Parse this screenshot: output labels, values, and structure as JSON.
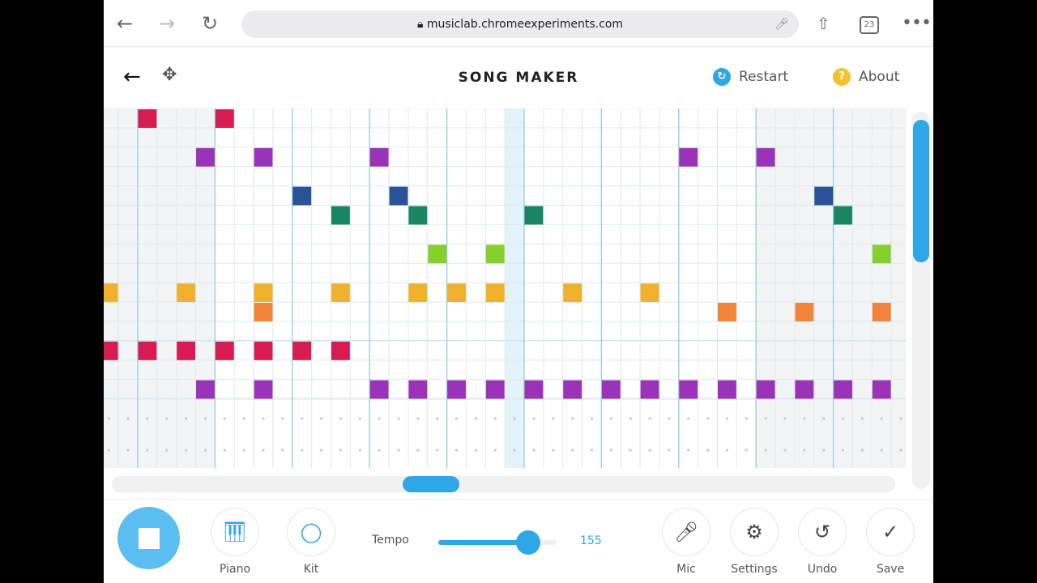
{
  "browser": {
    "url": "musiclab.chromeexperiments.com",
    "tab_count": "23"
  },
  "header": {
    "title": "SONG MAKER",
    "restart": "Restart",
    "about": "About",
    "about_icon": "?"
  },
  "grid": {
    "columns": 42,
    "rows": 15,
    "beats_per_bar": 4,
    "playhead_column": 21,
    "shaded_columns": [
      0,
      1,
      2,
      3,
      4,
      5,
      34,
      35,
      36,
      37,
      38,
      39,
      40,
      41
    ],
    "notes": [
      {
        "col": 2,
        "row": 0,
        "color": "#d81b50"
      },
      {
        "col": 6,
        "row": 0,
        "color": "#d81b50"
      },
      {
        "col": 5,
        "row": 2,
        "color": "#9a33b8"
      },
      {
        "col": 8,
        "row": 2,
        "color": "#9a33b8"
      },
      {
        "col": 14,
        "row": 2,
        "color": "#9a33b8"
      },
      {
        "col": 30,
        "row": 2,
        "color": "#9a33b8"
      },
      {
        "col": 34,
        "row": 2,
        "color": "#9a33b8"
      },
      {
        "col": 10,
        "row": 4,
        "color": "#2a5298"
      },
      {
        "col": 15,
        "row": 4,
        "color": "#2a5298"
      },
      {
        "col": 37,
        "row": 4,
        "color": "#2a5298"
      },
      {
        "col": 12,
        "row": 5,
        "color": "#1b8563"
      },
      {
        "col": 16,
        "row": 5,
        "color": "#1b8563"
      },
      {
        "col": 22,
        "row": 5,
        "color": "#1b8563"
      },
      {
        "col": 38,
        "row": 5,
        "color": "#1b8563"
      },
      {
        "col": 17,
        "row": 7,
        "color": "#86d02e"
      },
      {
        "col": 20,
        "row": 7,
        "color": "#86d02e"
      },
      {
        "col": 40,
        "row": 7,
        "color": "#86d02e"
      },
      {
        "col": 0,
        "row": 9,
        "color": "#f0b12c"
      },
      {
        "col": 4,
        "row": 9,
        "color": "#f0b12c"
      },
      {
        "col": 8,
        "row": 9,
        "color": "#f0b12c"
      },
      {
        "col": 12,
        "row": 9,
        "color": "#f0b12c"
      },
      {
        "col": 16,
        "row": 9,
        "color": "#f0b12c"
      },
      {
        "col": 18,
        "row": 9,
        "color": "#f0b12c"
      },
      {
        "col": 20,
        "row": 9,
        "color": "#f0b12c"
      },
      {
        "col": 24,
        "row": 9,
        "color": "#f0b12c"
      },
      {
        "col": 28,
        "row": 9,
        "color": "#f0b12c"
      },
      {
        "col": 8,
        "row": 10,
        "color": "#f0843a"
      },
      {
        "col": 32,
        "row": 10,
        "color": "#f0843a"
      },
      {
        "col": 36,
        "row": 10,
        "color": "#f0843a"
      },
      {
        "col": 40,
        "row": 10,
        "color": "#f0843a"
      },
      {
        "col": 0,
        "row": 12,
        "color": "#d81b50"
      },
      {
        "col": 2,
        "row": 12,
        "color": "#d81b50"
      },
      {
        "col": 4,
        "row": 12,
        "color": "#d81b50"
      },
      {
        "col": 6,
        "row": 12,
        "color": "#d81b50"
      },
      {
        "col": 8,
        "row": 12,
        "color": "#d81b50"
      },
      {
        "col": 10,
        "row": 12,
        "color": "#d81b50"
      },
      {
        "col": 12,
        "row": 12,
        "color": "#d81b50"
      },
      {
        "col": 5,
        "row": 14,
        "color": "#9a33b8"
      },
      {
        "col": 8,
        "row": 14,
        "color": "#9a33b8"
      },
      {
        "col": 14,
        "row": 14,
        "color": "#9a33b8"
      },
      {
        "col": 16,
        "row": 14,
        "color": "#9a33b8"
      },
      {
        "col": 18,
        "row": 14,
        "color": "#9a33b8"
      },
      {
        "col": 20,
        "row": 14,
        "color": "#9a33b8"
      },
      {
        "col": 22,
        "row": 14,
        "color": "#9a33b8"
      },
      {
        "col": 24,
        "row": 14,
        "color": "#9a33b8"
      },
      {
        "col": 26,
        "row": 14,
        "color": "#9a33b8"
      },
      {
        "col": 28,
        "row": 14,
        "color": "#9a33b8"
      },
      {
        "col": 30,
        "row": 14,
        "color": "#9a33b8"
      },
      {
        "col": 32,
        "row": 14,
        "color": "#9a33b8"
      },
      {
        "col": 34,
        "row": 14,
        "color": "#9a33b8"
      },
      {
        "col": 36,
        "row": 14,
        "color": "#9a33b8"
      },
      {
        "col": 38,
        "row": 14,
        "color": "#9a33b8"
      },
      {
        "col": 40,
        "row": 14,
        "color": "#9a33b8"
      }
    ]
  },
  "toolbar": {
    "piano": "Piano",
    "kit": "Kit",
    "tempo_label": "Tempo",
    "tempo_value": "155",
    "tempo_fraction": 0.76,
    "mic": "Mic",
    "settings": "Settings",
    "undo": "Undo",
    "save": "Save"
  },
  "colors": {
    "accent": "#2ea6e8",
    "play": "#5bbdf0"
  }
}
